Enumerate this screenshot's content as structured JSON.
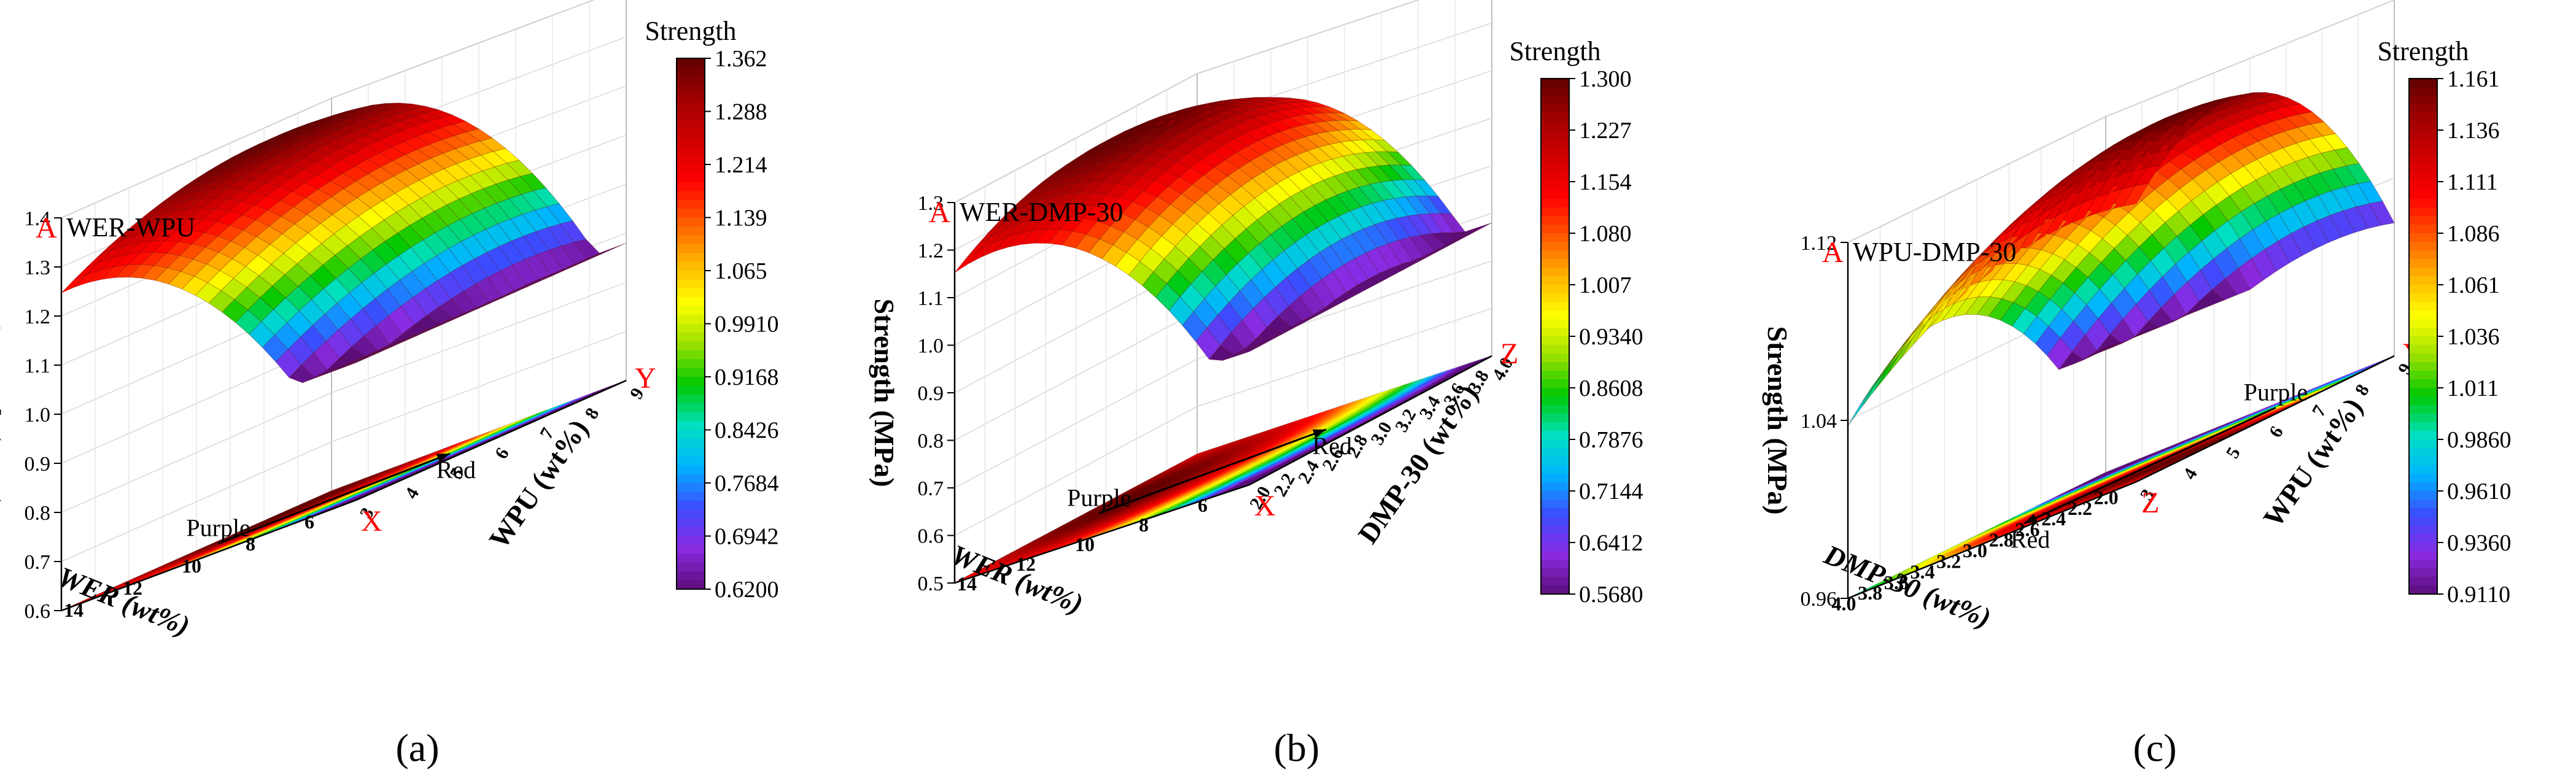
{
  "figure": {
    "panel_labels": [
      "(a)",
      "(b)",
      "(c)"
    ]
  },
  "colormap": [
    "#5b0e7a",
    "#8a2be2",
    "#3b4cff",
    "#00b4ff",
    "#00e0c0",
    "#00c800",
    "#9be000",
    "#ffff00",
    "#ffb400",
    "#ff5a00",
    "#ff0000",
    "#d00000",
    "#a00000",
    "#600000"
  ],
  "chart_data": [
    {
      "type": "surface",
      "title": "WER-WPU",
      "zlabel": "Strength (MPa)",
      "xlabel": "WER (wt%)",
      "ylabel": "WPU (wt%)",
      "colorbar_title": "Strength",
      "colorbar_ticks": [
        "1.362",
        "1.288",
        "1.214",
        "1.139",
        "1.065",
        "0.9910",
        "0.9168",
        "0.8426",
        "0.7684",
        "0.6942",
        "0.6200"
      ],
      "zticks": [
        "0.6",
        "0.7",
        "0.8",
        "0.9",
        "1.0",
        "1.1",
        "1.2",
        "1.3",
        "1.4"
      ],
      "xticks": [
        "6",
        "8",
        "10",
        "12",
        "14"
      ],
      "yticks": [
        "3",
        "4",
        "5",
        "6",
        "7",
        "8",
        "9"
      ],
      "xlim": [
        5,
        15
      ],
      "ylim": [
        3,
        9
      ],
      "zlim": [
        0.6,
        1.4
      ],
      "clim": [
        0.62,
        1.362
      ],
      "corner_labels": {
        "z": "A",
        "x": "X",
        "y": "Y"
      },
      "arrow": {
        "from": "Purple",
        "to": "Red"
      },
      "surface_range": [
        0.7,
        1.24
      ],
      "grid": true
    },
    {
      "type": "surface",
      "title": "WER-DMP-30",
      "zlabel": "Strength (MPa)",
      "xlabel": "WER (wt%)",
      "ylabel": "DMP-30 (wt%)",
      "colorbar_title": "Strength",
      "colorbar_ticks": [
        "1.300",
        "1.227",
        "1.154",
        "1.080",
        "1.007",
        "0.9340",
        "0.8608",
        "0.7876",
        "0.7144",
        "0.6412",
        "0.5680"
      ],
      "zticks": [
        "0.5",
        "0.6",
        "0.7",
        "0.8",
        "0.9",
        "1.0",
        "1.1",
        "1.2",
        "1.3"
      ],
      "xticks": [
        "6",
        "8",
        "10",
        "12",
        "14"
      ],
      "yticks": [
        "2.0",
        "2.2",
        "2.4",
        "2.6",
        "2.8",
        "3.0",
        "3.2",
        "3.4",
        "3.6",
        "3.8",
        "4.0"
      ],
      "xlim": [
        5,
        15
      ],
      "ylim": [
        2,
        4
      ],
      "zlim": [
        0.5,
        1.3
      ],
      "clim": [
        0.568,
        1.3
      ],
      "corner_labels": {
        "z": "A",
        "x": "X",
        "y": "Z"
      },
      "arrow": {
        "from": "Purple",
        "to": "Red"
      },
      "surface_range": [
        0.62,
        1.22
      ],
      "grid": true
    },
    {
      "type": "surface",
      "title": "WPU-DMP-30",
      "zlabel": "Strength (MPa)",
      "xlabel": "DMP-30 (wt%)",
      "ylabel": "WPU (wt%)",
      "colorbar_title": "Strength",
      "colorbar_ticks": [
        "1.161",
        "1.136",
        "1.111",
        "1.086",
        "1.061",
        "1.036",
        "1.011",
        "0.9860",
        "0.9610",
        "0.9360",
        "0.9110"
      ],
      "zticks": [
        "0.96",
        "1.04",
        "1.12"
      ],
      "xticks": [
        "2.0",
        "2.2",
        "2.4",
        "2.6",
        "2.8",
        "3.0",
        "3.2",
        "3.4",
        "3.6",
        "3.8",
        "4.0"
      ],
      "yticks": [
        "3",
        "4",
        "5",
        "6",
        "7",
        "8",
        "9"
      ],
      "xlim": [
        2,
        4
      ],
      "ylim": [
        3,
        9
      ],
      "zlim": [
        0.92,
        1.16
      ],
      "clim": [
        0.911,
        1.161
      ],
      "corner_labels": {
        "z": "A",
        "x": "Z",
        "y": "Y"
      },
      "arrow": {
        "from": "Purple",
        "to": "Red"
      },
      "surface_range": [
        0.92,
        1.16
      ],
      "grid": true
    }
  ]
}
